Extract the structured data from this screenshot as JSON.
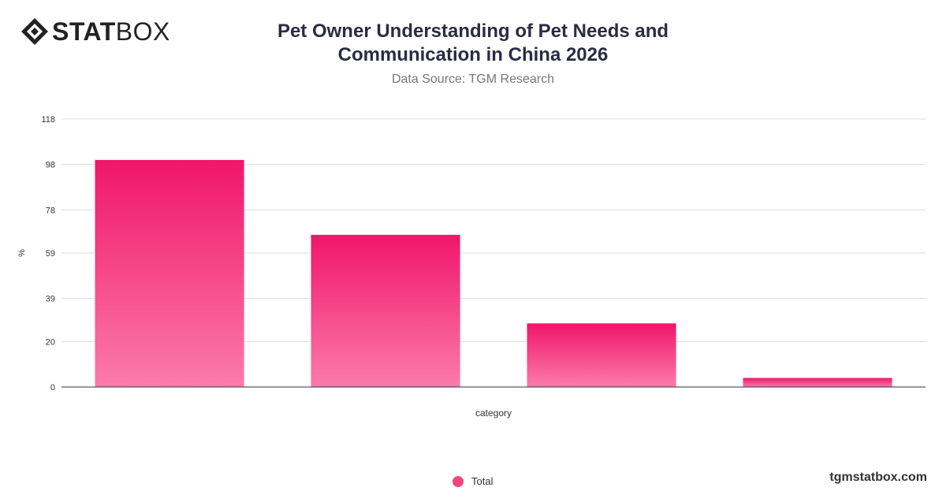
{
  "brand": {
    "logo_bold": "STAT",
    "logo_light": "BOX",
    "website": "tgmstatbox.com"
  },
  "title_line1": "Pet Owner Understanding of Pet Needs and",
  "title_line2": "Communication in China 2026",
  "subtitle": "Data Source: TGM Research",
  "colors": {
    "bar_top": "#f0166a",
    "bar_bottom": "#fb7bab",
    "legend": "#f0457e"
  },
  "chart_data": {
    "type": "bar",
    "title": "Pet Owner Understanding of Pet Needs and Communication in China 2026",
    "subtitle": "Data Source: TGM Research",
    "xlabel": "category",
    "ylabel": "%",
    "categories": [
      "",
      "",
      "",
      ""
    ],
    "series": [
      {
        "name": "Total",
        "values": [
          100,
          67,
          28,
          4
        ]
      }
    ],
    "yticks": [
      0,
      20,
      39,
      59,
      78,
      98,
      118
    ],
    "ylim": [
      0,
      118
    ],
    "grid": true,
    "legend": "bottom-center"
  }
}
